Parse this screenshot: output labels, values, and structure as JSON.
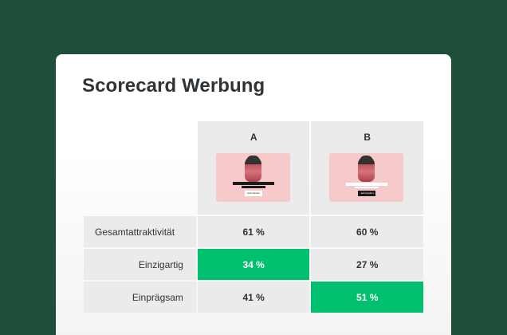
{
  "title": "Scorecard Werbung",
  "columns": [
    {
      "label": "A",
      "cta": "Jetzt kaufen",
      "variant": "dark"
    },
    {
      "label": "B",
      "cta": "Jetzt kaufen",
      "variant": "light"
    }
  ],
  "rows": [
    {
      "label": "Gesamtattraktivität",
      "a": "61 %",
      "b": "60 %",
      "highlight": ""
    },
    {
      "label": "Einzigartig",
      "a": "34 %",
      "b": "27 %",
      "highlight": "a"
    },
    {
      "label": "Einprägsam",
      "a": "41 %",
      "b": "51 %",
      "highlight": "b"
    }
  ],
  "colors": {
    "background": "#1f4f3b",
    "highlight": "#00bf6f",
    "thumbnail": "#f6c9ca"
  }
}
